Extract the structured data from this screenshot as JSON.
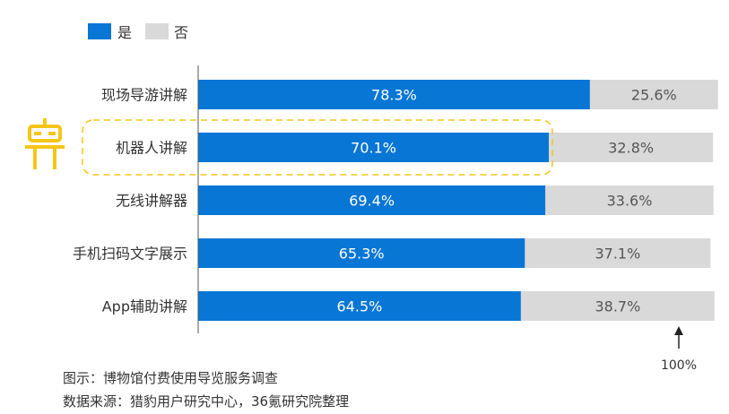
{
  "colors": {
    "yes": "#0776d4",
    "no": "#d9d9d9",
    "highlight": "#f5c518",
    "axis": "#555555"
  },
  "caption": {
    "title": "图示：博物馆付费使用导览服务调查",
    "source": "数据来源：猎豹用户研究中心，36氪研究院整理"
  },
  "icon": "robot-icon",
  "chart_data": {
    "type": "bar",
    "orientation": "horizontal",
    "stacked": true,
    "categories": [
      "现场导游讲解",
      "机器人讲解",
      "无线讲解器",
      "手机扫码文字展示",
      "App辅助讲解"
    ],
    "series": [
      {
        "name": "是",
        "values": [
          78.3,
          70.1,
          69.4,
          65.3,
          64.5
        ],
        "labels": [
          "78.3%",
          "70.1%",
          "69.4%",
          "65.3%",
          "64.5%"
        ]
      },
      {
        "name": "否",
        "values": [
          25.6,
          32.8,
          33.6,
          37.1,
          38.7
        ],
        "labels": [
          "25.6%",
          "32.8%",
          "33.6%",
          "37.1%",
          "38.7%"
        ]
      }
    ],
    "legend_position": "top-left",
    "highlighted_category": "机器人讲解",
    "reference_label": "100%",
    "reference_value": 100,
    "grid": false
  }
}
